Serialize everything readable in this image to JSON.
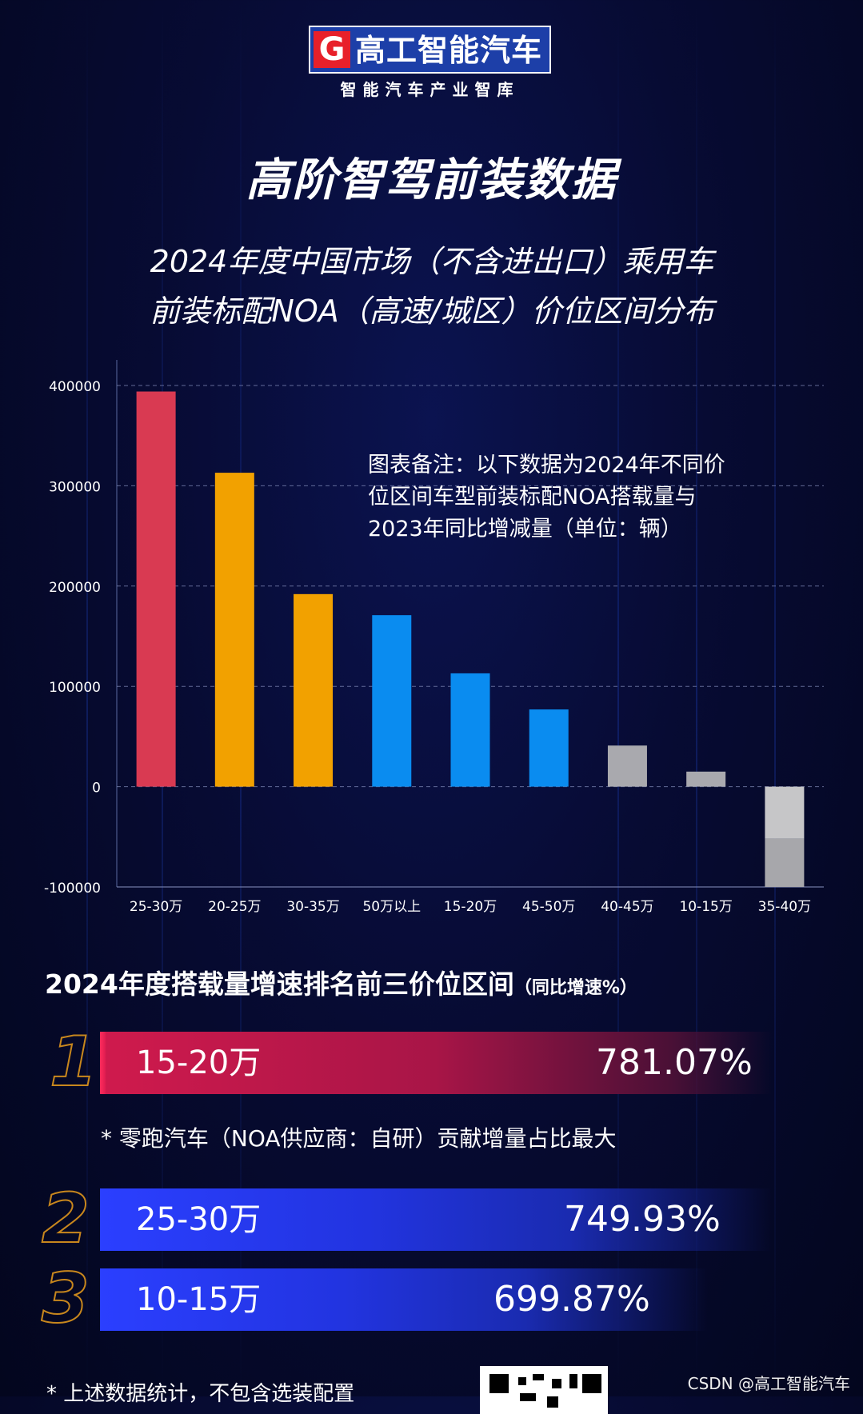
{
  "logo": {
    "mark": "G",
    "name": "高工智能汽车",
    "tagline": "智能汽车产业智库"
  },
  "title": "高阶智驾前装数据",
  "subtitle": [
    "2024年度中国市场（不含进出口）乘用车",
    "前装标配NOA（高速/城区）价位区间分布"
  ],
  "note": [
    "图表备注：以下数据为2024年不同价",
    "位区间车型前装标配NOA搭载量与",
    "2023年同比增减量（单位：辆）"
  ],
  "chart_data": {
    "type": "bar",
    "title": "",
    "categories": [
      "25-30万",
      "20-25万",
      "30-35万",
      "50万以上",
      "15-20万",
      "45-50万",
      "40-45万",
      "10-15万",
      "35-40万"
    ],
    "values": [
      394000,
      313000,
      192000,
      171000,
      113000,
      77000,
      41000,
      15000,
      -100000
    ],
    "colors": [
      "#d93a52",
      "#f2a100",
      "#f2a100",
      "#0a8cf0",
      "#0a8cf0",
      "#0a8cf0",
      "#a9a9ae",
      "#a9a9ae",
      "#b4b4b4"
    ],
    "ylim": [
      -100000,
      400000
    ],
    "yticks": [
      "400000",
      "300000",
      "200000",
      "100000",
      "0",
      "-100000"
    ],
    "ytick_values": [
      400000,
      300000,
      200000,
      100000,
      0,
      -100000
    ],
    "grid": true
  },
  "ranking": {
    "title": "2024年度搭载量增速排名前三价位区间",
    "unit": "（同比增速%）",
    "items": [
      {
        "rank": "1",
        "label": "15-20万",
        "pct": "781.07%"
      },
      {
        "rank": "2",
        "label": "25-30万",
        "pct": "749.93%"
      },
      {
        "rank": "3",
        "label": "10-15万",
        "pct": "699.87%"
      }
    ],
    "footnote": "* 零跑汽车（NOA供应商：自研）贡献增量占比最大"
  },
  "bottom_note": "* 上述数据统计，不包含选装配置",
  "watermark": "CSDN @高工智能汽车"
}
